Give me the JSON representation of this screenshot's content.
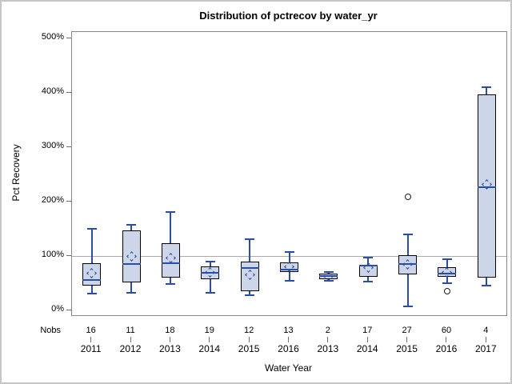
{
  "figure": {
    "title": "Distribution of pctrecov by water_yr",
    "y_axis_label": "Pct Recovery",
    "x_axis_label": "Water Year",
    "nobs_row_label": "Nobs"
  },
  "colors": {
    "box_fill": "#ccd6e8",
    "box_border": "#000000",
    "whisker_line": "#2a4ea8",
    "median_line": "#2a4ea8",
    "mean_diamond": "#2a4ea8",
    "outlier_stroke": "#1a1a1a",
    "reference_line": "#ababab",
    "plot_frame": "#878787"
  },
  "chart_data": {
    "type": "boxplot",
    "title": "Distribution of pctrecov by water_yr",
    "xlabel": "Water Year",
    "ylabel": "Pct Recovery",
    "ylim": [
      -9,
      512
    ],
    "yticks_percent": [
      0,
      100,
      200,
      300,
      400,
      500
    ],
    "ytick_labels": [
      "0%",
      "100%",
      "200%",
      "300%",
      "400%",
      "500%"
    ],
    "reference_line_percent": 100,
    "grid": false,
    "legend": null,
    "categories": [
      "2011",
      "2012",
      "2013",
      "2014",
      "2015",
      "2016",
      "2013",
      "2014",
      "2015",
      "2016",
      "2017"
    ],
    "nobs": [
      16,
      11,
      18,
      19,
      12,
      13,
      2,
      17,
      27,
      60,
      4
    ],
    "series": [
      {
        "category": "2011",
        "nobs": 16,
        "low": 31,
        "q1": 46,
        "median": 56,
        "q3": 87,
        "high": 150,
        "mean": 68,
        "outliers": []
      },
      {
        "category": "2012",
        "nobs": 11,
        "low": 32,
        "q1": 51,
        "median": 85,
        "q3": 147,
        "high": 158,
        "mean": 100,
        "outliers": []
      },
      {
        "category": "2013",
        "nobs": 18,
        "low": 49,
        "q1": 61,
        "median": 87,
        "q3": 123,
        "high": 181,
        "mean": 96,
        "outliers": []
      },
      {
        "category": "2014",
        "nobs": 19,
        "low": 32,
        "q1": 58,
        "median": 69,
        "q3": 81,
        "high": 90,
        "mean": 70,
        "outliers": []
      },
      {
        "category": "2015",
        "nobs": 12,
        "low": 28,
        "q1": 36,
        "median": 78,
        "q3": 90,
        "high": 131,
        "mean": 66,
        "outliers": []
      },
      {
        "category": "2016",
        "nobs": 13,
        "low": 54,
        "q1": 71,
        "median": 75,
        "q3": 88,
        "high": 108,
        "mean": 80,
        "outliers": []
      },
      {
        "category": "2013",
        "nobs": 2,
        "low": 55,
        "q1": 58,
        "median": 63,
        "q3": 67,
        "high": 70,
        "mean": 63,
        "outliers": []
      },
      {
        "category": "2014",
        "nobs": 17,
        "low": 53,
        "q1": 62,
        "median": 82,
        "q3": 84,
        "high": 97,
        "mean": 78,
        "outliers": []
      },
      {
        "category": "2015",
        "nobs": 27,
        "low": 8,
        "q1": 66,
        "median": 85,
        "q3": 101,
        "high": 139,
        "mean": 84,
        "outliers": [
          209
        ]
      },
      {
        "category": "2016",
        "nobs": 60,
        "low": 50,
        "q1": 62,
        "median": 68,
        "q3": 79,
        "high": 94,
        "mean": 70,
        "outliers": [
          35
        ]
      },
      {
        "category": "2017",
        "nobs": 4,
        "low": 46,
        "q1": 61,
        "median": 226,
        "q3": 397,
        "high": 410,
        "mean": 231,
        "outliers": []
      }
    ]
  }
}
